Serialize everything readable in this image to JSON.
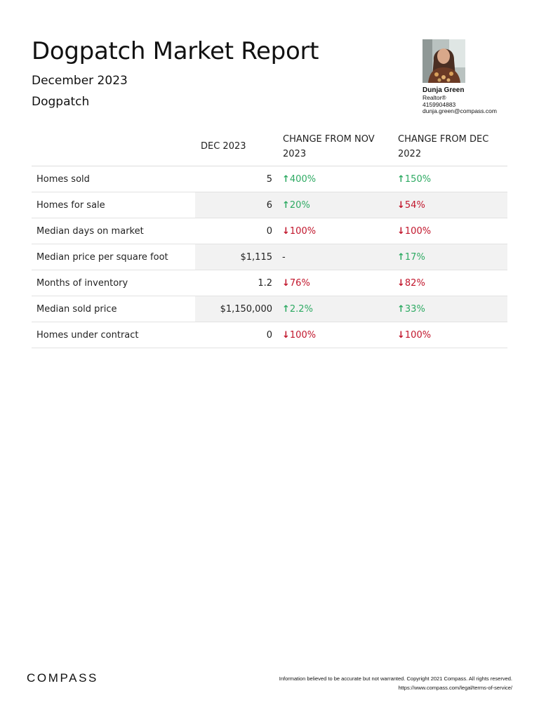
{
  "report": {
    "title": "Dogpatch Market Report",
    "period": "December 2023",
    "area": "Dogpatch"
  },
  "agent": {
    "name": "Dunja Green",
    "role": "Realtor®",
    "phone": "4159904883",
    "email": "dunja.green@compass.com"
  },
  "table": {
    "headers": [
      "",
      "DEC 2023",
      "CHANGE FROM NOV 2023",
      "CHANGE FROM DEC 2022"
    ],
    "rows": [
      {
        "metric": "Homes sold",
        "value": "5",
        "vs_nov": {
          "text": "400%",
          "dir": "up"
        },
        "vs_dec": {
          "text": "150%",
          "dir": "up"
        }
      },
      {
        "metric": "Homes for sale",
        "value": "6",
        "vs_nov": {
          "text": "20%",
          "dir": "up"
        },
        "vs_dec": {
          "text": "54%",
          "dir": "down"
        }
      },
      {
        "metric": "Median days on market",
        "value": "0",
        "vs_nov": {
          "text": "100%",
          "dir": "down"
        },
        "vs_dec": {
          "text": "100%",
          "dir": "down"
        }
      },
      {
        "metric": "Median price per square foot",
        "value": "$1,115",
        "vs_nov": {
          "text": "-",
          "dir": "none"
        },
        "vs_dec": {
          "text": "17%",
          "dir": "up"
        }
      },
      {
        "metric": "Months of inventory",
        "value": "1.2",
        "vs_nov": {
          "text": "76%",
          "dir": "down"
        },
        "vs_dec": {
          "text": "82%",
          "dir": "down"
        }
      },
      {
        "metric": "Median sold price",
        "value": "$1,150,000",
        "vs_nov": {
          "text": "2.2%",
          "dir": "up"
        },
        "vs_dec": {
          "text": "33%",
          "dir": "up"
        }
      },
      {
        "metric": "Homes under contract",
        "value": "0",
        "vs_nov": {
          "text": "100%",
          "dir": "down"
        },
        "vs_dec": {
          "text": "100%",
          "dir": "down"
        }
      }
    ]
  },
  "colors": {
    "up": "#2eaa63",
    "down": "#c1152b"
  },
  "footer": {
    "brand": "COMPASS",
    "disclaimer": "Information believed to be accurate but not warranted. Copyright 2021 Compass. All rights reserved.",
    "url": "https://www.compass.com/legal/terms-of-service/"
  }
}
